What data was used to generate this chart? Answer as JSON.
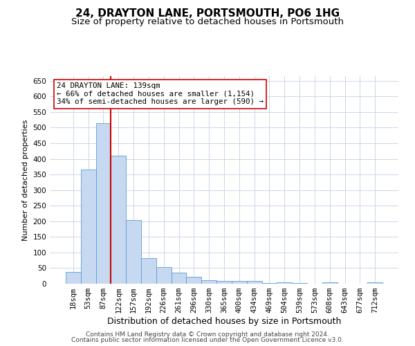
{
  "title": "24, DRAYTON LANE, PORTSMOUTH, PO6 1HG",
  "subtitle": "Size of property relative to detached houses in Portsmouth",
  "xlabel": "Distribution of detached houses by size in Portsmouth",
  "ylabel": "Number of detached properties",
  "categories": [
    "18sqm",
    "53sqm",
    "87sqm",
    "122sqm",
    "157sqm",
    "192sqm",
    "226sqm",
    "261sqm",
    "296sqm",
    "330sqm",
    "365sqm",
    "400sqm",
    "434sqm",
    "469sqm",
    "504sqm",
    "539sqm",
    "573sqm",
    "608sqm",
    "643sqm",
    "677sqm",
    "712sqm"
  ],
  "values": [
    37,
    365,
    515,
    410,
    204,
    82,
    54,
    35,
    22,
    12,
    8,
    8,
    8,
    2,
    5,
    2,
    0,
    5,
    0,
    0,
    5
  ],
  "bar_color": "#c6d9f0",
  "bar_edge_color": "#5b9bd5",
  "vline_x_idx": 3,
  "vline_color": "#cc0000",
  "annotation_line1": "24 DRAYTON LANE: 139sqm",
  "annotation_line2": "← 66% of detached houses are smaller (1,154)",
  "annotation_line3": "34% of semi-detached houses are larger (590) →",
  "annotation_box_color": "#ffffff",
  "annotation_box_edge_color": "#cc0000",
  "footer1": "Contains HM Land Registry data © Crown copyright and database right 2024.",
  "footer2": "Contains public sector information licensed under the Open Government Licence v3.0.",
  "ylim": [
    0,
    665
  ],
  "yticks": [
    0,
    50,
    100,
    150,
    200,
    250,
    300,
    350,
    400,
    450,
    500,
    550,
    600,
    650
  ],
  "background_color": "#ffffff",
  "grid_color": "#ccd6e8",
  "title_fontsize": 11,
  "subtitle_fontsize": 9.5,
  "tick_fontsize": 7.5,
  "xlabel_fontsize": 9,
  "ylabel_fontsize": 8,
  "annotation_fontsize": 7.8,
  "footer_fontsize": 6.5
}
